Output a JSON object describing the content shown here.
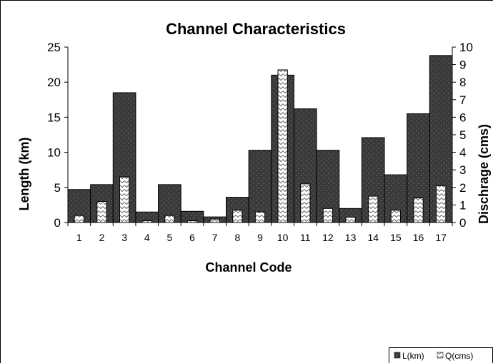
{
  "chart_data": {
    "type": "bar",
    "title": "Channel Characteristics",
    "xlabel": "Channel Code",
    "ylabel": "Length (km)",
    "y2label": "Dischrage (cms)",
    "categories": [
      "1",
      "2",
      "3",
      "4",
      "5",
      "6",
      "7",
      "8",
      "9",
      "10",
      "11",
      "12",
      "13",
      "14",
      "15",
      "16",
      "17"
    ],
    "ylim": [
      0,
      25
    ],
    "y2lim": [
      0,
      10
    ],
    "yticks": [
      "0",
      "5",
      "10",
      "15",
      "20",
      "25"
    ],
    "y2ticks": [
      "0",
      "1",
      "2",
      "3",
      "4",
      "5",
      "6",
      "7",
      "8",
      "9",
      "10"
    ],
    "grid": false,
    "legend_position": "bottom-right",
    "series": [
      {
        "name": "L(km)",
        "axis": "left",
        "color": "#3a3a3a",
        "values": [
          4.7,
          5.4,
          18.5,
          1.5,
          5.4,
          1.6,
          0.8,
          3.6,
          10.3,
          21.0,
          16.2,
          10.3,
          2.0,
          12.1,
          6.8,
          15.5,
          23.8
        ]
      },
      {
        "name": "Q(cms)",
        "axis": "right",
        "color": "#ffffff",
        "values": [
          0.4,
          1.2,
          2.6,
          0.1,
          0.4,
          0.1,
          0.2,
          0.7,
          0.6,
          8.7,
          2.2,
          0.8,
          0.3,
          1.5,
          0.7,
          1.4,
          2.1
        ]
      }
    ]
  }
}
